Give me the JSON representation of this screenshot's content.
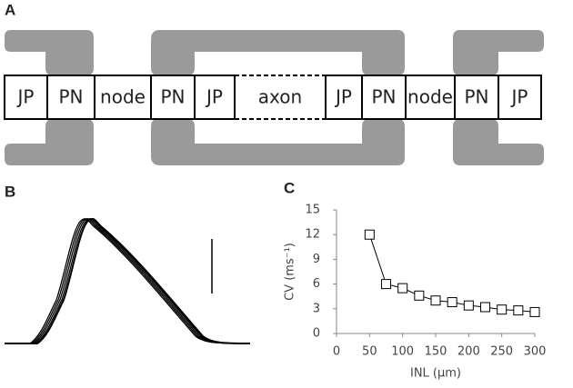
{
  "panel_labels": [
    "A",
    "B",
    "C"
  ],
  "diagram": {
    "segments": [
      "JP",
      "PN",
      "node",
      "PN",
      "JP",
      "axon",
      "JP",
      "PN",
      "node",
      "PN",
      "JP"
    ]
  },
  "chart_data": {
    "type": "line",
    "x_label": "INL (µm)",
    "y_label": "CV (ms⁻¹)",
    "x": [
      50,
      75,
      100,
      125,
      150,
      175,
      200,
      225,
      250,
      275,
      300
    ],
    "series": [
      {
        "color": "#000000",
        "values": [
          12,
          6,
          5.5,
          4.6,
          4.0,
          3.8,
          3.4,
          3.2,
          2.9,
          2.8,
          2.6
        ]
      }
    ],
    "xlim": [
      0,
      300
    ],
    "xticks": [
      0,
      50,
      100,
      150,
      200,
      250,
      300
    ],
    "ylim": [
      0,
      15
    ],
    "yticks": [
      0,
      3,
      6,
      9,
      12,
      15
    ]
  }
}
